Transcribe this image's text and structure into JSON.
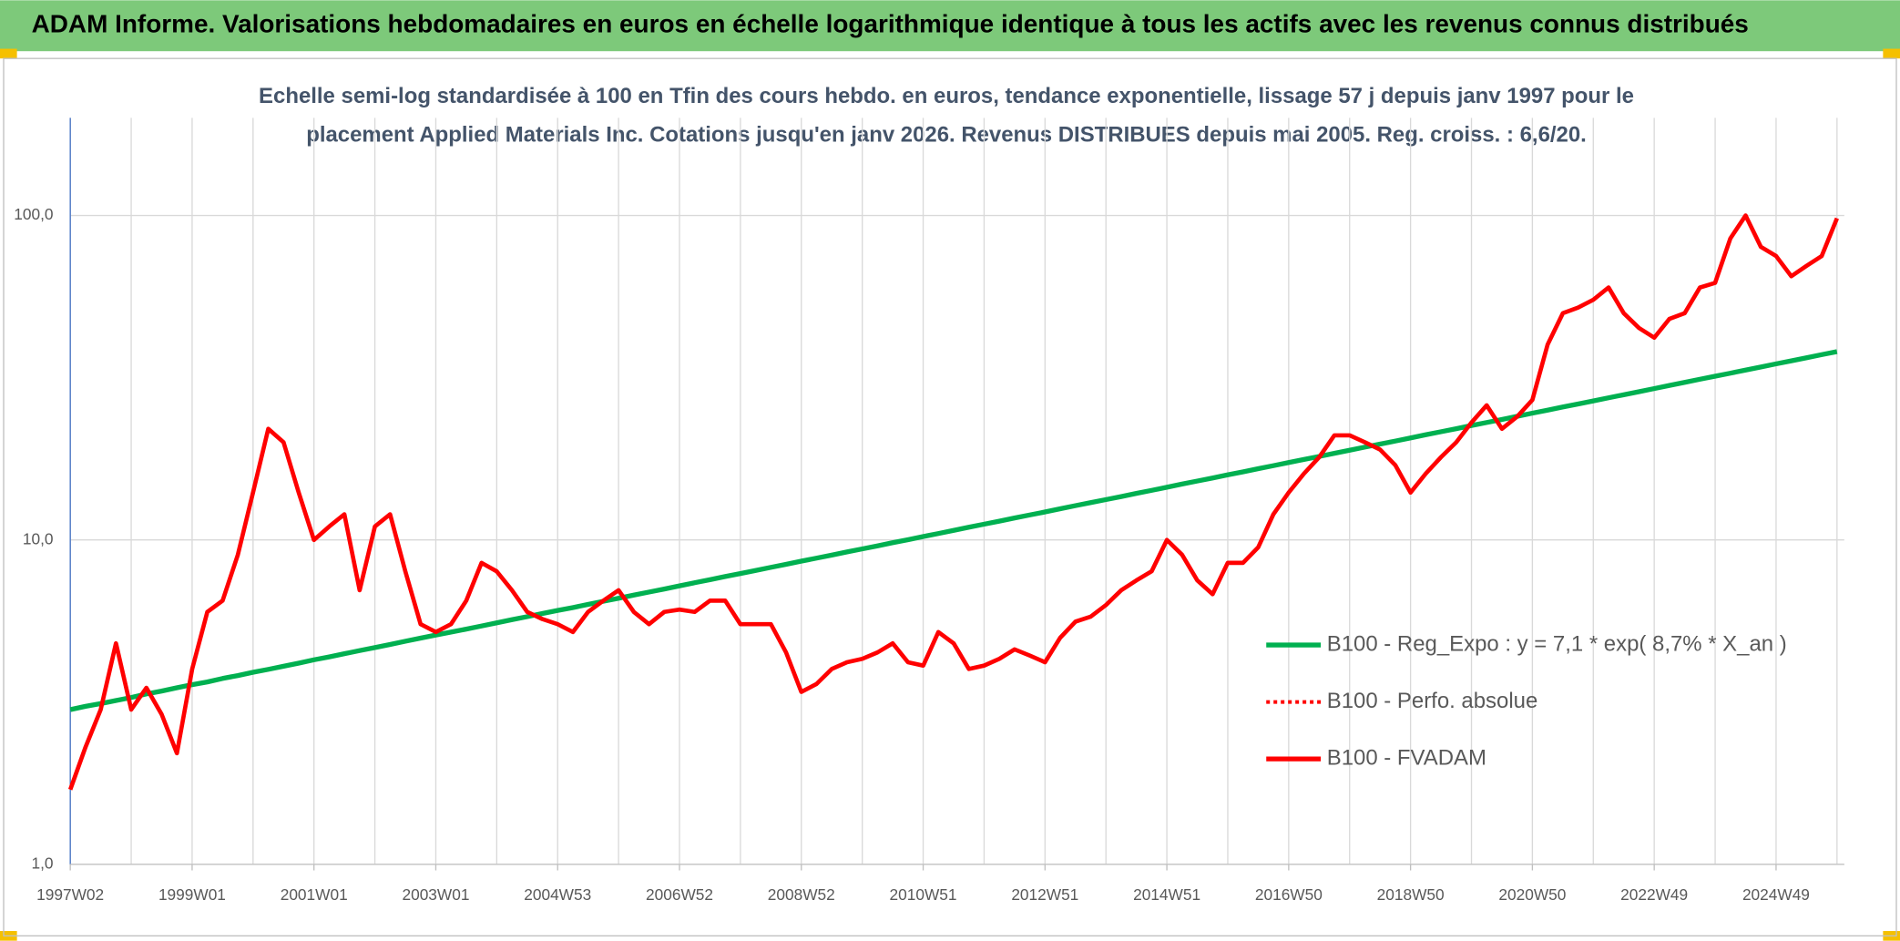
{
  "chart_data": {
    "type": "line",
    "title": "ADAM Informe. Valorisations hebdomadaires en euros en échelle logarithmique identique à tous les actifs avec les revenus connus distribués",
    "subtitle": [
      "Echelle semi-log standardisée à 100 en Tfin des cours hebdo. en euros, tendance exponentielle, lissage 57 j depuis janv 1997 pour le",
      "placement Applied Materials Inc. Cotations jusqu'en janv 2026. Revenus DISTRIBUES depuis mai 2005. Reg. croiss. : 6,6/20."
    ],
    "categories": [
      "1997W02",
      null,
      null,
      null,
      null,
      null,
      null,
      null,
      "1999W01",
      null,
      null,
      null,
      null,
      null,
      null,
      null,
      "2001W01",
      null,
      null,
      null,
      null,
      null,
      null,
      null,
      "2003W01",
      null,
      null,
      null,
      null,
      null,
      null,
      null,
      "2004W53",
      null,
      null,
      null,
      null,
      null,
      null,
      null,
      "2006W52",
      null,
      null,
      null,
      null,
      null,
      null,
      null,
      "2008W52",
      null,
      null,
      null,
      null,
      null,
      null,
      null,
      "2010W51",
      null,
      null,
      null,
      null,
      null,
      null,
      null,
      "2012W51",
      null,
      null,
      null,
      null,
      null,
      null,
      null,
      "2014W51",
      null,
      null,
      null,
      null,
      null,
      null,
      null,
      "2016W50",
      null,
      null,
      null,
      null,
      null,
      null,
      null,
      "2018W50",
      null,
      null,
      null,
      null,
      null,
      null,
      null,
      "2020W50",
      null,
      null,
      null,
      null,
      null,
      null,
      null,
      "2022W49",
      null,
      null,
      null,
      null,
      null,
      null,
      null,
      "2024W49",
      null,
      null,
      null,
      null
    ],
    "series": [
      {
        "name": "B100 - Reg_Expo : y = 7,1 * exp( 8,7% *  X_an )",
        "color": "#00b050",
        "values": [
          3.0,
          3.07,
          3.13,
          3.2,
          3.27,
          3.35,
          3.42,
          3.5,
          3.58,
          3.65,
          3.74,
          3.82,
          3.91,
          3.99,
          4.08,
          4.17,
          4.27,
          4.36,
          4.46,
          4.56,
          4.66,
          4.76,
          4.87,
          4.98,
          5.09,
          5.2,
          5.31,
          5.43,
          5.55,
          5.68,
          5.8,
          5.93,
          6.06,
          6.19,
          6.33,
          6.47,
          6.61,
          6.76,
          6.91,
          7.06,
          7.22,
          7.38,
          7.54,
          7.71,
          7.88,
          8.05,
          8.23,
          8.41,
          8.6,
          8.79,
          8.98,
          9.18,
          9.38,
          9.59,
          9.8,
          10.02,
          10.24,
          10.47,
          10.7,
          10.94,
          11.18,
          11.43,
          11.68,
          11.94,
          12.2,
          12.47,
          12.75,
          13.03,
          13.32,
          13.61,
          13.91,
          14.22,
          14.54,
          14.86,
          15.19,
          15.52,
          15.87,
          16.22,
          16.58,
          16.94,
          17.32,
          17.7,
          18.09,
          18.49,
          18.9,
          19.32,
          19.75,
          20.18,
          20.63,
          21.09,
          21.55,
          22.03,
          22.52,
          23.01,
          23.52,
          24.04,
          24.58,
          25.12,
          25.68,
          26.24,
          26.82,
          27.42,
          28.02,
          28.64,
          29.28,
          29.93,
          30.59,
          31.27,
          31.96,
          32.66,
          33.39,
          34.13,
          34.88,
          35.65,
          36.44,
          37.25,
          38.07
        ]
      },
      {
        "name": "B100 - Perfo. absolue",
        "color": "#ff0000",
        "dash": "dotted"
      },
      {
        "name": "B100 - FVADAM",
        "color": "#ff0000",
        "values": [
          1.7,
          2.3,
          3.0,
          4.8,
          3.0,
          3.5,
          2.9,
          2.2,
          4.0,
          6.0,
          6.5,
          9.0,
          14,
          22,
          20,
          14,
          10,
          11,
          12,
          7,
          11,
          12,
          8,
          5.5,
          5.2,
          5.5,
          6.5,
          8.5,
          8.0,
          7.0,
          6.0,
          5.7,
          5.5,
          5.2,
          6.0,
          6.5,
          7.0,
          6.0,
          5.5,
          6.0,
          6.1,
          6.0,
          6.5,
          6.5,
          5.5,
          5.5,
          5.5,
          4.5,
          3.4,
          3.6,
          4.0,
          4.2,
          4.3,
          4.5,
          4.8,
          4.2,
          4.1,
          5.2,
          4.8,
          4.0,
          4.1,
          4.3,
          4.6,
          4.4,
          4.2,
          5.0,
          5.6,
          5.8,
          6.3,
          7.0,
          7.5,
          8.0,
          10,
          9.0,
          7.5,
          6.8,
          8.5,
          8.5,
          9.5,
          12,
          14,
          16,
          18,
          21,
          21,
          20,
          19,
          17,
          14,
          16,
          18,
          20,
          23,
          26,
          22,
          24,
          27,
          40,
          50,
          52,
          55,
          60,
          50,
          45,
          42,
          48,
          50,
          60,
          62,
          85,
          100,
          80,
          75,
          65,
          70,
          75,
          98
        ]
      }
    ],
    "log_y": true,
    "ylim": [
      1,
      200
    ],
    "yticks": [
      {
        "value": 1,
        "label": "1,0"
      },
      {
        "value": 10,
        "label": "10,0"
      },
      {
        "value": 100,
        "label": "100,0"
      }
    ],
    "grid": true,
    "legend": "right"
  }
}
